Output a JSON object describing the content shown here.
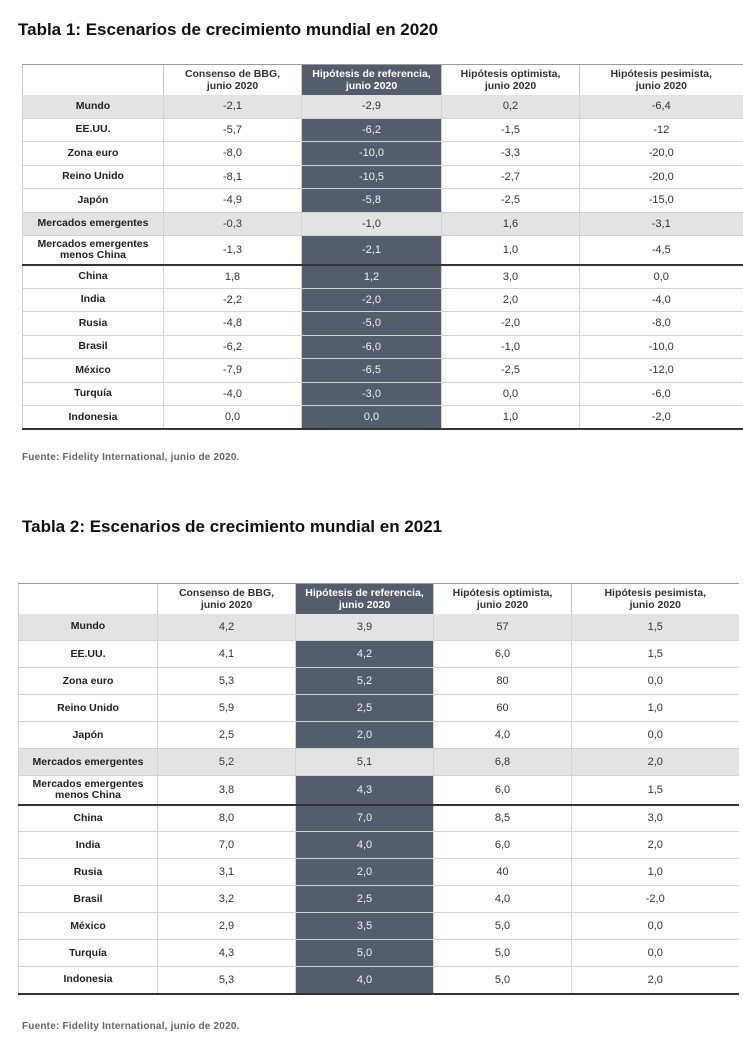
{
  "table1": {
    "title": "Tabla 1: Escenarios de crecimiento mundial en 2020",
    "headers": [
      [
        "Consenso de BBG,",
        "junio 2020"
      ],
      [
        "Hipótesis de referencia,",
        "junio 2020"
      ],
      [
        "Hipótesis optimista,",
        "junio 2020"
      ],
      [
        "Hipótesis pesimista,",
        "junio 2020"
      ]
    ],
    "rows": [
      {
        "label": "Mundo",
        "values": [
          "-2,1",
          "-2,9",
          "0,2",
          "-6,4"
        ]
      },
      {
        "label": "EE.UU.",
        "values": [
          "-5,7",
          "-6,2",
          "-1,5",
          "-12"
        ]
      },
      {
        "label": "Zona euro",
        "values": [
          "-8,0",
          "-10,0",
          "-3,3",
          "-20,0"
        ]
      },
      {
        "label": "Reino Unido",
        "values": [
          "-8,1",
          "-10,5",
          "-2,7",
          "-20,0"
        ]
      },
      {
        "label": "Japón",
        "values": [
          "-4,9",
          "-5,8",
          "-2,5",
          "-15,0"
        ]
      },
      {
        "label": "Mercados emergentes",
        "values": [
          "-0,3",
          "-1,0",
          "1,6",
          "-3,1"
        ]
      },
      {
        "label": "Mercados emergentes menos China",
        "values": [
          "-1,3",
          "-2,1",
          "1,0",
          "-4,5"
        ]
      },
      {
        "label": "China",
        "values": [
          "1,8",
          "1,2",
          "3,0",
          "0,0"
        ]
      },
      {
        "label": "India",
        "values": [
          "-2,2",
          "-2,0",
          "2,0",
          "-4,0"
        ]
      },
      {
        "label": "Rusia",
        "values": [
          "-4,8",
          "-5,0",
          "-2,0",
          "-8,0"
        ]
      },
      {
        "label": "Brasil",
        "values": [
          "-6,2",
          "-6,0",
          "-1,0",
          "-10,0"
        ]
      },
      {
        "label": "México",
        "values": [
          "-7,9",
          "-6,5",
          "-2,5",
          "-12,0"
        ]
      },
      {
        "label": "Turquía",
        "values": [
          "-4,0",
          "-3,0",
          "0,0",
          "-6,0"
        ]
      },
      {
        "label": "Indonesia",
        "values": [
          "0,0",
          "0,0",
          "1,0",
          "-2,0"
        ]
      }
    ],
    "source": "Fuente: Fidelity International, junio de 2020."
  },
  "table2": {
    "title": "Tabla 2: Escenarios de crecimiento mundial en 2021",
    "headers": [
      [
        "Consenso de BBG,",
        "junio 2020"
      ],
      [
        "Hipótesis de referencia,",
        "junio 2020"
      ],
      [
        "Hipótesis optimista,",
        "junio 2020"
      ],
      [
        "Hipótesis pesimista,",
        "junio 2020"
      ]
    ],
    "rows": [
      {
        "label": "Mundo",
        "values": [
          "4,2",
          "3,9",
          "57",
          "1,5"
        ]
      },
      {
        "label": "EE.UU.",
        "values": [
          "4,1",
          "4,2",
          "6,0",
          "1,5"
        ]
      },
      {
        "label": "Zona euro",
        "values": [
          "5,3",
          "5,2",
          "80",
          "0,0"
        ]
      },
      {
        "label": "Reino Unido",
        "values": [
          "5,9",
          "2,5",
          "60",
          "1,0"
        ]
      },
      {
        "label": "Japón",
        "values": [
          "2,5",
          "2,0",
          "4,0",
          "0,0"
        ]
      },
      {
        "label": "Mercados emergentes",
        "values": [
          "5,2",
          "5,1",
          "6,8",
          "2,0"
        ]
      },
      {
        "label": "Mercados emergentes menos China",
        "values": [
          "3,8",
          "4,3",
          "6,0",
          "1,5"
        ]
      },
      {
        "label": "China",
        "values": [
          "8,0",
          "7,0",
          "8,5",
          "3,0"
        ]
      },
      {
        "label": "India",
        "values": [
          "7,0",
          "4,0",
          "6,0",
          "2,0"
        ]
      },
      {
        "label": "Rusia",
        "values": [
          "3,1",
          "2,0",
          "40",
          "1,0"
        ]
      },
      {
        "label": "Brasil",
        "values": [
          "3,2",
          "2,5",
          "4,0",
          "-2,0"
        ]
      },
      {
        "label": "México",
        "values": [
          "2,9",
          "3,5",
          "5,0",
          "0,0"
        ]
      },
      {
        "label": "Turquía",
        "values": [
          "4,3",
          "5,0",
          "5,0",
          "0,0"
        ]
      },
      {
        "label": "Indonesia",
        "values": [
          "5,3",
          "4,0",
          "5,0",
          "2,0"
        ]
      }
    ],
    "source": "Fuente: Fidelity International, junio de 2020."
  }
}
